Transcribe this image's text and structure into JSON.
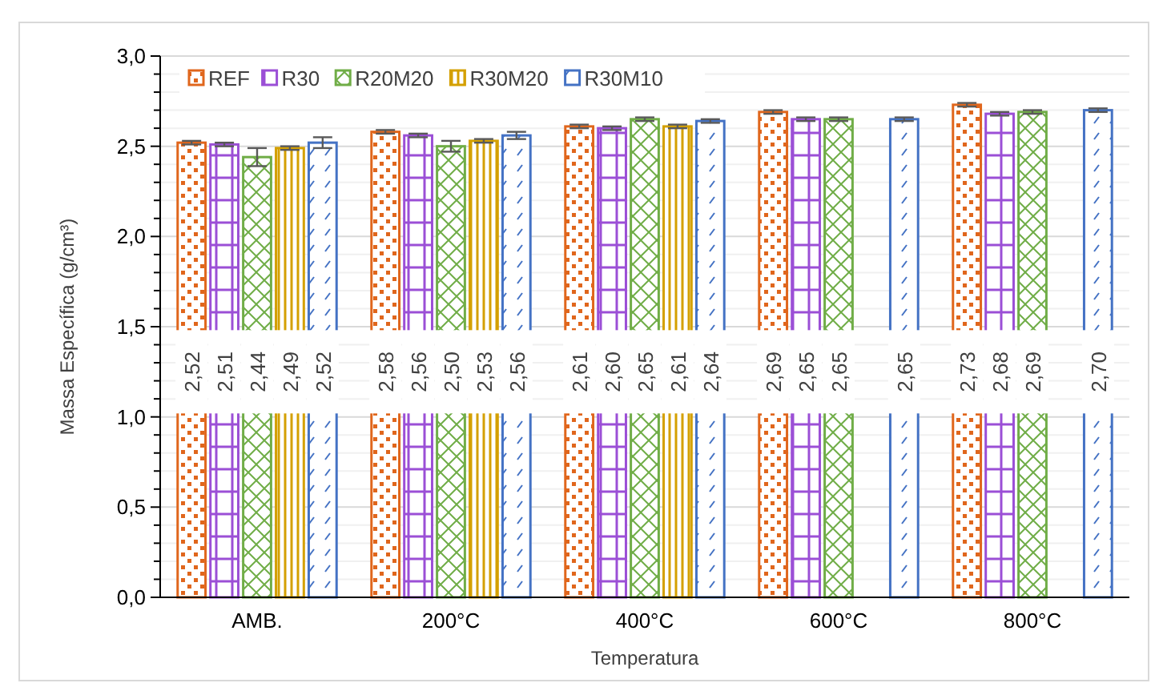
{
  "chart_data": {
    "type": "bar",
    "xlabel": "Temperatura",
    "ylabel": "Massa Específica (g/cm³)",
    "categories": [
      "AMB.",
      "200°C",
      "400°C",
      "600°C",
      "800°C"
    ],
    "series": [
      {
        "name": "REF",
        "color": "#e0661c",
        "values": [
          2.52,
          2.58,
          2.61,
          2.69,
          2.73
        ],
        "errors": [
          0.01,
          0.01,
          0.01,
          0.01,
          0.01
        ],
        "value_labels": [
          "2,52",
          "2,58",
          "2,61",
          "2,69",
          "2,73"
        ]
      },
      {
        "name": "R30",
        "color": "#9b4fd6",
        "values": [
          2.51,
          2.56,
          2.6,
          2.65,
          2.68
        ],
        "errors": [
          0.01,
          0.01,
          0.01,
          0.01,
          0.01
        ],
        "value_labels": [
          "2,51",
          "2,56",
          "2,60",
          "2,65",
          "2,68"
        ]
      },
      {
        "name": "R20M20",
        "color": "#70ad47",
        "values": [
          2.44,
          2.5,
          2.65,
          2.65,
          2.69
        ],
        "errors": [
          0.05,
          0.03,
          0.01,
          0.01,
          0.01
        ],
        "value_labels": [
          "2,44",
          "2,50",
          "2,65",
          "2,65",
          "2,69"
        ]
      },
      {
        "name": "R30M20",
        "color": "#d4a000",
        "values": [
          2.49,
          2.53,
          2.61,
          null,
          null
        ],
        "errors": [
          0.01,
          0.01,
          0.01,
          null,
          null
        ],
        "value_labels": [
          "2,49",
          "2,53",
          "2,61",
          null,
          null
        ]
      },
      {
        "name": "R30M10",
        "color": "#4472c4",
        "values": [
          2.52,
          2.56,
          2.64,
          2.65,
          2.7
        ],
        "errors": [
          0.03,
          0.02,
          0.01,
          0.01,
          0.01
        ],
        "value_labels": [
          "2,52",
          "2,56",
          "2,64",
          "2,65",
          "2,70"
        ]
      }
    ],
    "ylim": [
      0,
      3
    ],
    "yticks": [
      {
        "value": 0,
        "label": "0,0"
      },
      {
        "value": 0.1,
        "label": null
      },
      {
        "value": 0.2,
        "label": null
      },
      {
        "value": 0.3,
        "label": null
      },
      {
        "value": 0.4,
        "label": null
      },
      {
        "value": 0.5,
        "label": "0,5"
      },
      {
        "value": 0.6,
        "label": null
      },
      {
        "value": 0.7,
        "label": null
      },
      {
        "value": 0.8,
        "label": null
      },
      {
        "value": 0.9,
        "label": null
      },
      {
        "value": 1,
        "label": "1,0"
      },
      {
        "value": 1.1,
        "label": null
      },
      {
        "value": 1.2,
        "label": null
      },
      {
        "value": 1.3,
        "label": null
      },
      {
        "value": 1.4,
        "label": null
      },
      {
        "value": 1.5,
        "label": "1,5"
      },
      {
        "value": 1.6,
        "label": null
      },
      {
        "value": 1.7,
        "label": null
      },
      {
        "value": 1.8,
        "label": null
      },
      {
        "value": 1.9,
        "label": null
      },
      {
        "value": 2,
        "label": "2,0"
      },
      {
        "value": 2.1,
        "label": null
      },
      {
        "value": 2.2,
        "label": null
      },
      {
        "value": 2.3,
        "label": null
      },
      {
        "value": 2.4,
        "label": null
      },
      {
        "value": 2.5,
        "label": "2,5"
      },
      {
        "value": 2.6,
        "label": null
      },
      {
        "value": 2.7,
        "label": null
      },
      {
        "value": 2.8,
        "label": null
      },
      {
        "value": 2.9,
        "label": null
      },
      {
        "value": 3,
        "label": "3,0"
      }
    ],
    "grid": "y",
    "legend": "top left"
  }
}
